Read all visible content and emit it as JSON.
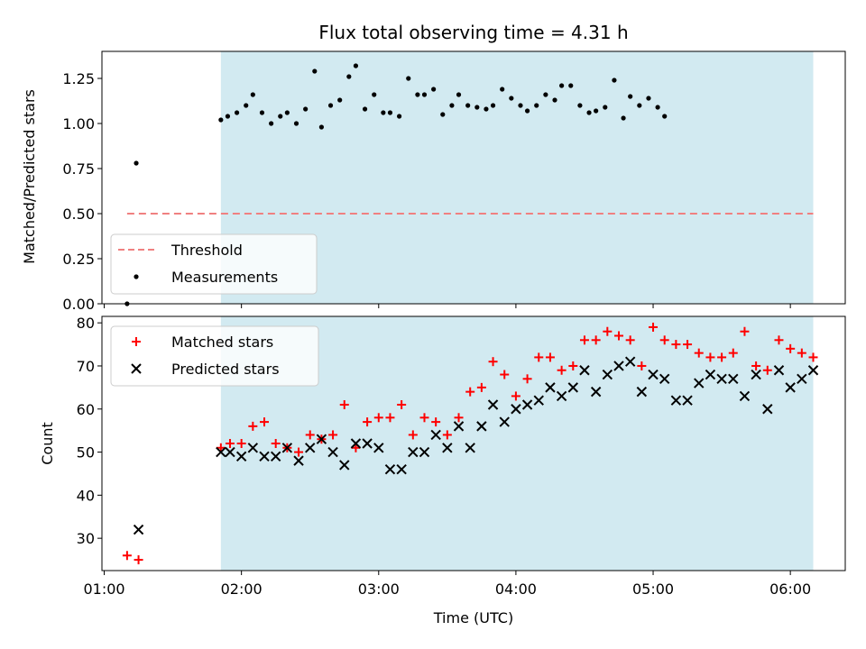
{
  "chart_data": [
    {
      "type": "scatter",
      "title": "Flux total observing time = 4.31 h",
      "xlabel": "",
      "ylabel": "Matched/Predicted stars",
      "ylim": [
        0,
        1.4
      ],
      "yticks": [
        "0.00",
        "0.25",
        "0.50",
        "0.75",
        "1.00",
        "1.25"
      ],
      "xlim": [
        "00:59",
        "06:24"
      ],
      "xticks": [
        "01:00",
        "02:00",
        "03:00",
        "04:00",
        "05:00",
        "06:00"
      ],
      "shaded_span": [
        "01:51",
        "06:10"
      ],
      "threshold": {
        "name": "Threshold",
        "value": 0.5,
        "x_range": [
          "01:10",
          "06:10"
        ],
        "color": "#f08080",
        "style": "dashed"
      },
      "legend_position": "lower-left",
      "series": [
        {
          "name": "Measurements",
          "color": "#000000",
          "marker": "dot",
          "points": [
            [
              "01:10",
              0.0
            ],
            [
              "01:14",
              0.78
            ],
            [
              "01:51",
              1.02
            ],
            [
              "01:54",
              1.04
            ],
            [
              "01:58",
              1.06
            ],
            [
              "02:02",
              1.1
            ],
            [
              "02:05",
              1.16
            ],
            [
              "02:09",
              1.06
            ],
            [
              "02:13",
              1.0
            ],
            [
              "02:17",
              1.04
            ],
            [
              "02:20",
              1.06
            ],
            [
              "02:24",
              1.0
            ],
            [
              "02:28",
              1.08
            ],
            [
              "02:32",
              1.29
            ],
            [
              "02:35",
              0.98
            ],
            [
              "02:39",
              1.1
            ],
            [
              "02:43",
              1.13
            ],
            [
              "02:47",
              1.26
            ],
            [
              "02:50",
              1.32
            ],
            [
              "02:54",
              1.08
            ],
            [
              "02:58",
              1.16
            ],
            [
              "03:02",
              1.06
            ],
            [
              "03:05",
              1.06
            ],
            [
              "03:09",
              1.04
            ],
            [
              "03:13",
              1.25
            ],
            [
              "03:17",
              1.16
            ],
            [
              "03:20",
              1.16
            ],
            [
              "03:24",
              1.19
            ],
            [
              "03:28",
              1.05
            ],
            [
              "03:32",
              1.1
            ],
            [
              "03:35",
              1.16
            ],
            [
              "03:39",
              1.1
            ],
            [
              "03:43",
              1.09
            ],
            [
              "03:47",
              1.08
            ],
            [
              "03:50",
              1.1
            ],
            [
              "03:54",
              1.19
            ],
            [
              "03:58",
              1.14
            ],
            [
              "04:02",
              1.1
            ],
            [
              "04:05",
              1.07
            ],
            [
              "04:09",
              1.1
            ],
            [
              "04:13",
              1.16
            ],
            [
              "04:17",
              1.13
            ],
            [
              "04:20",
              1.21
            ],
            [
              "04:24",
              1.21
            ],
            [
              "04:28",
              1.1
            ],
            [
              "04:32",
              1.06
            ],
            [
              "04:35",
              1.07
            ],
            [
              "04:39",
              1.09
            ],
            [
              "04:43",
              1.24
            ],
            [
              "04:47",
              1.03
            ],
            [
              "04:50",
              1.15
            ],
            [
              "04:54",
              1.1
            ],
            [
              "04:58",
              1.14
            ],
            [
              "05:02",
              1.09
            ],
            [
              "05:05",
              1.04
            ]
          ]
        }
      ]
    },
    {
      "type": "scatter",
      "title": "",
      "xlabel": "Time (UTC)",
      "ylabel": "Count",
      "ylim": [
        22.5,
        81.5
      ],
      "yticks": [
        "30",
        "40",
        "50",
        "60",
        "70",
        "80"
      ],
      "xlim": [
        "00:59",
        "06:24"
      ],
      "xticks": [
        "01:00",
        "02:00",
        "03:00",
        "04:00",
        "05:00",
        "06:00"
      ],
      "shaded_span": [
        "01:51",
        "06:10"
      ],
      "legend_position": "upper-left",
      "series": [
        {
          "name": "Matched stars",
          "color": "#ff0000",
          "marker": "plus",
          "points": [
            [
              "01:10",
              26
            ],
            [
              "01:15",
              25
            ],
            [
              "01:51",
              51
            ],
            [
              "01:55",
              52
            ],
            [
              "02:00",
              52
            ],
            [
              "02:05",
              56
            ],
            [
              "02:10",
              57
            ],
            [
              "02:15",
              52
            ],
            [
              "02:20",
              51
            ],
            [
              "02:25",
              50
            ],
            [
              "02:30",
              54
            ],
            [
              "02:35",
              53
            ],
            [
              "02:40",
              54
            ],
            [
              "02:45",
              61
            ],
            [
              "02:50",
              51
            ],
            [
              "02:55",
              57
            ],
            [
              "03:00",
              58
            ],
            [
              "03:05",
              58
            ],
            [
              "03:10",
              61
            ],
            [
              "03:15",
              54
            ],
            [
              "03:20",
              58
            ],
            [
              "03:25",
              57
            ],
            [
              "03:30",
              54
            ],
            [
              "03:35",
              58
            ],
            [
              "03:40",
              64
            ],
            [
              "03:45",
              65
            ],
            [
              "03:50",
              71
            ],
            [
              "03:55",
              68
            ],
            [
              "04:00",
              63
            ],
            [
              "04:05",
              67
            ],
            [
              "04:10",
              72
            ],
            [
              "04:15",
              72
            ],
            [
              "04:20",
              69
            ],
            [
              "04:25",
              70
            ],
            [
              "04:30",
              76
            ],
            [
              "04:35",
              76
            ],
            [
              "04:40",
              78
            ],
            [
              "04:45",
              77
            ],
            [
              "04:50",
              76
            ],
            [
              "04:55",
              70
            ],
            [
              "05:00",
              79
            ],
            [
              "05:05",
              76
            ],
            [
              "05:10",
              75
            ],
            [
              "05:15",
              75
            ],
            [
              "05:20",
              73
            ],
            [
              "05:25",
              72
            ],
            [
              "05:30",
              72
            ],
            [
              "05:35",
              73
            ],
            [
              "05:40",
              78
            ],
            [
              "05:45",
              70
            ],
            [
              "05:50",
              69
            ],
            [
              "05:55",
              76
            ],
            [
              "06:00",
              74
            ],
            [
              "06:05",
              73
            ],
            [
              "06:10",
              72
            ]
          ]
        },
        {
          "name": "Predicted stars",
          "color": "#000000",
          "marker": "x",
          "points": [
            [
              "01:15",
              32
            ],
            [
              "01:51",
              50
            ],
            [
              "01:55",
              50
            ],
            [
              "02:00",
              49
            ],
            [
              "02:05",
              51
            ],
            [
              "02:10",
              49
            ],
            [
              "02:15",
              49
            ],
            [
              "02:20",
              51
            ],
            [
              "02:25",
              48
            ],
            [
              "02:30",
              51
            ],
            [
              "02:35",
              53
            ],
            [
              "02:40",
              50
            ],
            [
              "02:45",
              47
            ],
            [
              "02:50",
              52
            ],
            [
              "02:55",
              52
            ],
            [
              "03:00",
              51
            ],
            [
              "03:05",
              46
            ],
            [
              "03:10",
              46
            ],
            [
              "03:15",
              50
            ],
            [
              "03:20",
              50
            ],
            [
              "03:25",
              54
            ],
            [
              "03:30",
              51
            ],
            [
              "03:35",
              56
            ],
            [
              "03:40",
              51
            ],
            [
              "03:45",
              56
            ],
            [
              "03:50",
              61
            ],
            [
              "03:55",
              57
            ],
            [
              "04:00",
              60
            ],
            [
              "04:05",
              61
            ],
            [
              "04:10",
              62
            ],
            [
              "04:15",
              65
            ],
            [
              "04:20",
              63
            ],
            [
              "04:25",
              65
            ],
            [
              "04:30",
              69
            ],
            [
              "04:35",
              64
            ],
            [
              "04:40",
              68
            ],
            [
              "04:45",
              70
            ],
            [
              "04:50",
              71
            ],
            [
              "04:55",
              64
            ],
            [
              "05:00",
              68
            ],
            [
              "05:05",
              67
            ],
            [
              "05:10",
              62
            ],
            [
              "05:15",
              62
            ],
            [
              "05:20",
              66
            ],
            [
              "05:25",
              68
            ],
            [
              "05:30",
              67
            ],
            [
              "05:35",
              67
            ],
            [
              "05:40",
              63
            ],
            [
              "05:45",
              68
            ],
            [
              "05:50",
              60
            ],
            [
              "05:55",
              69
            ],
            [
              "06:00",
              65
            ],
            [
              "06:05",
              67
            ],
            [
              "06:10",
              69
            ]
          ]
        }
      ]
    }
  ],
  "colors": {
    "shade": "#add8e6",
    "axes": "#000000",
    "background": "#ffffff"
  }
}
